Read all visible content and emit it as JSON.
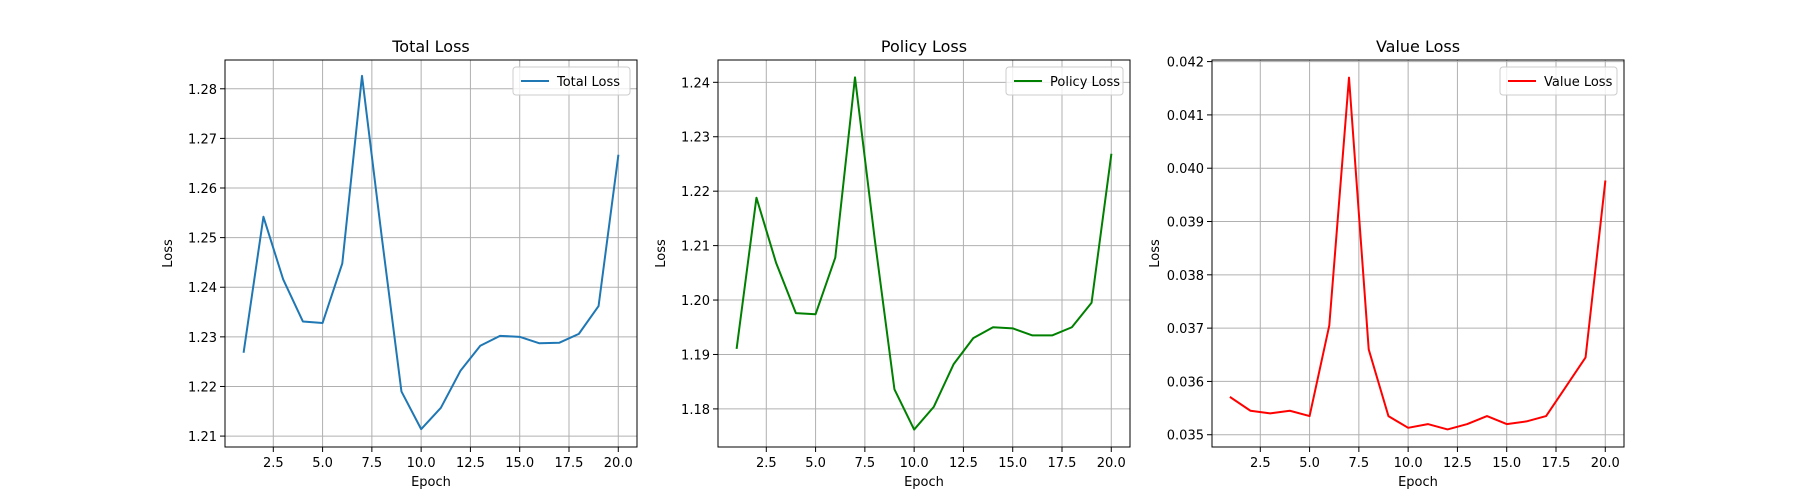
{
  "chart_data": [
    {
      "type": "line",
      "title": "Total Loss",
      "xlabel": "Epoch",
      "ylabel": "Loss",
      "xlim": [
        0.05,
        20.95
      ],
      "ylim": [
        1.2078,
        1.2858
      ],
      "xticks": [
        2.5,
        5.0,
        7.5,
        10.0,
        12.5,
        15.0,
        17.5,
        20.0
      ],
      "xtick_labels": [
        "2.5",
        "5.0",
        "7.5",
        "10.0",
        "12.5",
        "15.0",
        "17.5",
        "20.0"
      ],
      "yticks": [
        1.21,
        1.22,
        1.23,
        1.24,
        1.25,
        1.26,
        1.27,
        1.28
      ],
      "ytick_labels": [
        "1.21",
        "1.22",
        "1.23",
        "1.24",
        "1.25",
        "1.26",
        "1.27",
        "1.28"
      ],
      "grid": true,
      "legend_position": "top-right",
      "series": [
        {
          "name": "Total Loss",
          "color": "#1f77b4",
          "x": [
            1,
            2,
            3,
            4,
            5,
            6,
            7,
            8,
            9,
            10,
            11,
            12,
            13,
            14,
            15,
            16,
            17,
            18,
            19,
            20
          ],
          "y": [
            1.227,
            1.2542,
            1.2416,
            1.2331,
            1.2328,
            1.2448,
            1.2826,
            1.2502,
            1.219,
            1.2114,
            1.2157,
            1.2232,
            1.2282,
            1.2302,
            1.23,
            1.2287,
            1.2288,
            1.2306,
            1.2362,
            1.2665
          ]
        }
      ]
    },
    {
      "type": "line",
      "title": "Policy Loss",
      "xlabel": "Epoch",
      "ylabel": "Loss",
      "xlim": [
        0.05,
        20.95
      ],
      "ylim": [
        1.173,
        1.2441
      ],
      "xticks": [
        2.5,
        5.0,
        7.5,
        10.0,
        12.5,
        15.0,
        17.5,
        20.0
      ],
      "xtick_labels": [
        "2.5",
        "5.0",
        "7.5",
        "10.0",
        "12.5",
        "15.0",
        "17.5",
        "20.0"
      ],
      "yticks": [
        1.18,
        1.19,
        1.2,
        1.21,
        1.22,
        1.23,
        1.24
      ],
      "ytick_labels": [
        "1.18",
        "1.19",
        "1.20",
        "1.21",
        "1.22",
        "1.23",
        "1.24"
      ],
      "grid": true,
      "legend_position": "top-right",
      "series": [
        {
          "name": "Policy Loss",
          "color": "#008000",
          "x": [
            1,
            2,
            3,
            4,
            5,
            6,
            7,
            8,
            9,
            10,
            11,
            12,
            13,
            14,
            15,
            16,
            17,
            18,
            19,
            20
          ],
          "y": [
            1.1912,
            1.2188,
            1.2068,
            1.1976,
            1.1974,
            1.2078,
            1.2409,
            1.2112,
            1.1836,
            1.1762,
            1.1804,
            1.1882,
            1.193,
            1.195,
            1.1948,
            1.1935,
            1.1935,
            1.195,
            1.1995,
            1.2267
          ]
        }
      ]
    },
    {
      "type": "line",
      "title": "Value Loss",
      "xlabel": "Epoch",
      "ylabel": "Loss",
      "xlim": [
        0.05,
        20.95
      ],
      "ylim": [
        0.03477,
        0.04203
      ],
      "xticks": [
        2.5,
        5.0,
        7.5,
        10.0,
        12.5,
        15.0,
        17.5,
        20.0
      ],
      "xtick_labels": [
        "2.5",
        "5.0",
        "7.5",
        "10.0",
        "12.5",
        "15.0",
        "17.5",
        "20.0"
      ],
      "yticks": [
        0.035,
        0.036,
        0.037,
        0.038,
        0.039,
        0.04,
        0.041,
        0.042
      ],
      "ytick_labels": [
        "0.035",
        "0.036",
        "0.037",
        "0.038",
        "0.039",
        "0.040",
        "0.041",
        "0.042"
      ],
      "grid": true,
      "legend_position": "top-right",
      "series": [
        {
          "name": "Value Loss",
          "color": "#ff0000",
          "x": [
            1,
            2,
            3,
            4,
            5,
            6,
            7,
            8,
            9,
            10,
            11,
            12,
            13,
            14,
            15,
            16,
            17,
            18,
            19,
            20
          ],
          "y": [
            0.0357,
            0.03545,
            0.0354,
            0.03545,
            0.03535,
            0.03705,
            0.0417,
            0.0366,
            0.03535,
            0.03513,
            0.0352,
            0.0351,
            0.0352,
            0.03535,
            0.0352,
            0.03525,
            0.03535,
            0.0359,
            0.03645,
            0.03975
          ]
        }
      ]
    }
  ]
}
